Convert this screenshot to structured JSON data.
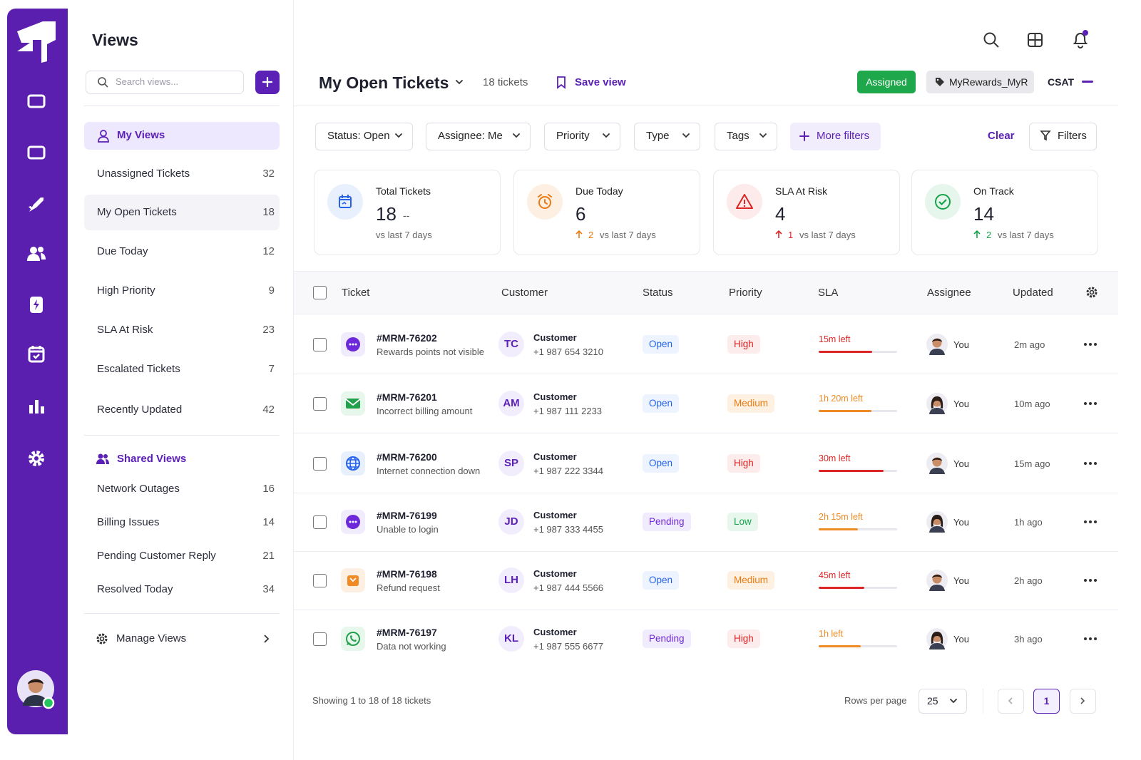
{
  "sidebar": {
    "views_title": "Views",
    "search_placeholder": "Search views...",
    "my_views": "My Views",
    "views": [
      {
        "label": "Unassigned Tickets",
        "count": 32
      },
      {
        "label": "My Open Tickets",
        "count": 18
      },
      {
        "label": "Due Today",
        "count": 12
      },
      {
        "label": "High Priority",
        "count": 9
      },
      {
        "label": "SLA At Risk",
        "count": 23
      },
      {
        "label": "Escalated Tickets",
        "count": 7
      },
      {
        "label": "Recently Updated",
        "count": 42
      }
    ],
    "shared_views": "Shared Views",
    "shared": [
      {
        "label": "Network Outages",
        "count": 16
      },
      {
        "label": "Billing Issues",
        "count": 14
      },
      {
        "label": "Pending Customer Reply",
        "count": 21
      },
      {
        "label": "Resolved Today",
        "count": 34
      }
    ],
    "manage": "Manage Views"
  },
  "header": {
    "title": "My Open Tickets",
    "count": "18 tickets",
    "save": "Save view",
    "assigned": "Assigned",
    "tag": "MyRewards_MyR",
    "csat": "CSAT"
  },
  "filters": {
    "items": [
      "Status: Open",
      "Assignee: Me",
      "Priority",
      "Type",
      "Tags"
    ],
    "more": "More filters",
    "clear": "Clear",
    "button": "Filters"
  },
  "stats": [
    {
      "label": "Total Tickets",
      "value": 18,
      "trend": "--",
      "compare": "vs last 7 days",
      "color": "#2563eb",
      "bg": "#e8f0fd"
    },
    {
      "label": "Due Today",
      "value": 6,
      "change": 2,
      "compare": "vs last 7 days",
      "color": "#ea7a12",
      "bg": "#fdf0e3"
    },
    {
      "label": "SLA At Risk",
      "value": 4,
      "change": 1,
      "compare": "vs last 7 days",
      "color": "#dc2626",
      "bg": "#fdeaea"
    },
    {
      "label": "On Track",
      "value": 14,
      "change": 2,
      "compare": "vs last 7 days",
      "color": "#16a34a",
      "bg": "#e6f6ec"
    }
  ],
  "table": {
    "columns": [
      "Ticket",
      "Customer",
      "Status",
      "Priority",
      "SLA",
      "Assignee",
      "Updated"
    ],
    "rows": [
      {
        "channel": "chat",
        "id": "#MRM-76202",
        "subject": "Rewards points not visible",
        "initials": "TC",
        "customer": "Customer",
        "phone": "+1 987 654 3210",
        "status": "Open",
        "status_color": "#2563eb",
        "status_bg": "#eef4ff",
        "priority": "High",
        "priority_color": "#dc2626",
        "priority_bg": "#fdecec",
        "sla": "15m left",
        "sla_pct": 68,
        "sla_color": "#dc2626",
        "assignee": "You",
        "updated": "2m ago"
      },
      {
        "channel": "email",
        "id": "#MRM-76201",
        "subject": "Incorrect billing amount",
        "initials": "AM",
        "customer": "Customer",
        "phone": "+1 987 111 2233",
        "status": "Open",
        "status_color": "#2563eb",
        "status_bg": "#eef4ff",
        "priority": "Medium",
        "priority_color": "#ea7a12",
        "priority_bg": "#fff1e2",
        "sla": "1h 20m left",
        "sla_pct": 67,
        "sla_color": "#f08a24",
        "assignee": "You",
        "updated": "10m ago"
      },
      {
        "channel": "web",
        "id": "#MRM-76200",
        "subject": "Internet connection down",
        "initials": "SP",
        "customer": "Customer",
        "phone": "+1 987 222 3344",
        "status": "Open",
        "status_color": "#2563eb",
        "status_bg": "#eef4ff",
        "priority": "High",
        "priority_color": "#dc2626",
        "priority_bg": "#fdecec",
        "sla": "30m left",
        "sla_pct": 83,
        "sla_color": "#dc2626",
        "assignee": "You",
        "updated": "15m ago"
      },
      {
        "channel": "chat",
        "id": "#MRM-76199",
        "subject": "Unable to login",
        "initials": "JD",
        "customer": "Customer",
        "phone": "+1 987 333 4455",
        "status": "Pending",
        "status_color": "#6d28d9",
        "status_bg": "#f1ebfe",
        "priority": "Low",
        "priority_color": "#16a34a",
        "priority_bg": "#e8f7ed",
        "sla": "2h 15m left",
        "sla_pct": 50,
        "sla_color": "#f08a24",
        "assignee": "You",
        "updated": "1h ago"
      },
      {
        "channel": "shop",
        "id": "#MRM-76198",
        "subject": "Refund request",
        "initials": "LH",
        "customer": "Customer",
        "phone": "+1 987 444 5566",
        "status": "Open",
        "status_color": "#2563eb",
        "status_bg": "#eef4ff",
        "priority": "Medium",
        "priority_color": "#ea7a12",
        "priority_bg": "#fff1e2",
        "sla": "45m left",
        "sla_pct": 58,
        "sla_color": "#dc2626",
        "assignee": "You",
        "updated": "2h ago"
      },
      {
        "channel": "whatsapp",
        "id": "#MRM-76197",
        "subject": "Data not working",
        "initials": "KL",
        "customer": "Customer",
        "phone": "+1 987 555 6677",
        "status": "Pending",
        "status_color": "#6d28d9",
        "status_bg": "#f1ebfe",
        "priority": "High",
        "priority_color": "#dc2626",
        "priority_bg": "#fdecec",
        "sla": "1h left",
        "sla_pct": 54,
        "sla_color": "#f08a24",
        "assignee": "You",
        "updated": "3h ago"
      }
    ]
  },
  "footer": {
    "showing": "Showing 1 to 18 of 18 tickets",
    "rows_label": "Rows per page",
    "rows_value": 25,
    "page": 1
  }
}
